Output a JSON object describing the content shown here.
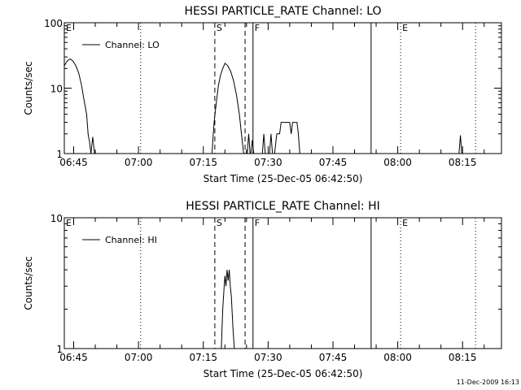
{
  "footer": {
    "timestamp": "11-Dec-2009 16:13"
  },
  "chart_data": [
    {
      "type": "line",
      "title": "HESSI PARTICLE_RATE Channel: LO",
      "xlabel": "Start Time (25-Dec-05 06:42:50)",
      "ylabel": "Counts/sec",
      "yscale": "log",
      "ylim": [
        1,
        100
      ],
      "yticks": [
        {
          "v": 1,
          "label": "1"
        },
        {
          "v": 10,
          "label": "10"
        },
        {
          "v": 100,
          "label": "100"
        }
      ],
      "xlim": [
        "06:42:50",
        "08:24:00"
      ],
      "xticks": [
        "06:45",
        "07:00",
        "07:15",
        "07:30",
        "07:45",
        "08:00",
        "08:15"
      ],
      "legend": {
        "position": "top-left",
        "entries": [
          "Channel: LO"
        ]
      },
      "grid": false,
      "series": [
        {
          "name": "Channel: LO",
          "segments": [
            [
              [
                "06:42:50",
                22
              ],
              [
                "06:43:30",
                26
              ],
              [
                "06:44:10",
                28
              ],
              [
                "06:44:50",
                26
              ],
              [
                "06:45:30",
                22
              ],
              [
                "06:46:10",
                17
              ],
              [
                "06:46:50",
                11
              ],
              [
                "06:47:30",
                6
              ],
              [
                "06:48:00",
                4
              ],
              [
                "06:48:20",
                2
              ],
              [
                "06:48:40",
                1.5
              ],
              [
                "06:49:00",
                1
              ]
            ],
            [
              [
                "06:49:00",
                1
              ],
              [
                "06:49:25",
                1.8
              ],
              [
                "06:49:50",
                1
              ]
            ],
            [
              [
                "07:17:00",
                1
              ],
              [
                "07:17:30",
                3
              ],
              [
                "07:18:00",
                6
              ],
              [
                "07:18:30",
                11
              ],
              [
                "07:19:00",
                16
              ],
              [
                "07:19:30",
                20
              ],
              [
                "07:20:00",
                24
              ],
              [
                "07:20:40",
                22
              ],
              [
                "07:21:20",
                18
              ],
              [
                "07:22:00",
                13
              ],
              [
                "07:22:40",
                8
              ],
              [
                "07:23:20",
                4
              ],
              [
                "07:23:50",
                2
              ],
              [
                "07:24:20",
                1
              ]
            ],
            [
              [
                "07:25:10",
                1
              ],
              [
                "07:25:30",
                2
              ],
              [
                "07:25:50",
                1
              ]
            ],
            [
              [
                "07:26:00",
                1
              ],
              [
                "07:26:20",
                1.6
              ],
              [
                "07:26:40",
                1
              ]
            ],
            [
              [
                "07:28:40",
                1
              ],
              [
                "07:29:00",
                2
              ],
              [
                "07:29:20",
                1
              ]
            ],
            [
              [
                "07:30:20",
                1
              ],
              [
                "07:30:40",
                2
              ],
              [
                "07:31:00",
                1
              ]
            ],
            [
              [
                "07:31:30",
                1
              ],
              [
                "07:32:00",
                2
              ],
              [
                "07:32:40",
                2
              ],
              [
                "07:33:00",
                3
              ],
              [
                "07:35:00",
                3
              ],
              [
                "07:35:20",
                2
              ],
              [
                "07:35:40",
                3
              ],
              [
                "07:36:40",
                3
              ],
              [
                "07:37:00",
                2
              ],
              [
                "07:37:20",
                1
              ]
            ],
            [
              [
                "08:14:10",
                1
              ],
              [
                "08:14:30",
                1.9
              ],
              [
                "08:14:50",
                1
              ]
            ]
          ]
        }
      ],
      "annotations": [
        {
          "label": "E",
          "time": "06:42:50",
          "line": "none"
        },
        {
          "label": "",
          "time": "07:00:30",
          "line": "dotted"
        },
        {
          "label": "S",
          "time": "07:17:40",
          "line": "dashed"
        },
        {
          "label": "",
          "time": "07:24:40",
          "line": "dashed"
        },
        {
          "label": "F",
          "time": "07:26:30",
          "line": "solid"
        },
        {
          "label": "",
          "time": "07:53:50",
          "line": "solid"
        },
        {
          "label": "E",
          "time": "08:00:40",
          "line": "dotted"
        },
        {
          "label": "",
          "time": "08:18:00",
          "line": "dotted"
        }
      ]
    },
    {
      "type": "line",
      "title": "HESSI PARTICLE_RATE Channel: HI",
      "xlabel": "Start Time (25-Dec-05 06:42:50)",
      "ylabel": "Counts/sec",
      "yscale": "log",
      "ylim": [
        1,
        10
      ],
      "yticks": [
        {
          "v": 1,
          "label": "1"
        },
        {
          "v": 10,
          "label": "10"
        }
      ],
      "xlim": [
        "06:42:50",
        "08:24:00"
      ],
      "xticks": [
        "06:45",
        "07:00",
        "07:15",
        "07:30",
        "07:45",
        "08:00",
        "08:15"
      ],
      "legend": {
        "position": "top-left",
        "entries": [
          "Channel: HI"
        ]
      },
      "grid": false,
      "series": [
        {
          "name": "Channel: HI",
          "segments": [
            [
              [
                "07:19:10",
                1
              ],
              [
                "07:19:30",
                2
              ],
              [
                "07:19:50",
                3
              ],
              [
                "07:20:00",
                3.6
              ],
              [
                "07:20:15",
                3
              ],
              [
                "07:20:30",
                4
              ],
              [
                "07:20:45",
                3.3
              ],
              [
                "07:21:00",
                4
              ],
              [
                "07:21:15",
                3
              ],
              [
                "07:21:30",
                2.5
              ],
              [
                "07:21:50",
                1.5
              ],
              [
                "07:22:10",
                1
              ]
            ]
          ]
        }
      ],
      "annotations": [
        {
          "label": "E",
          "time": "06:42:50",
          "line": "none"
        },
        {
          "label": "",
          "time": "07:00:30",
          "line": "dotted"
        },
        {
          "label": "S",
          "time": "07:17:40",
          "line": "dashed"
        },
        {
          "label": "",
          "time": "07:24:40",
          "line": "dashed"
        },
        {
          "label": "F",
          "time": "07:26:30",
          "line": "solid"
        },
        {
          "label": "",
          "time": "07:53:50",
          "line": "solid"
        },
        {
          "label": "E",
          "time": "08:00:40",
          "line": "dotted"
        },
        {
          "label": "",
          "time": "08:18:00",
          "line": "dotted"
        }
      ]
    }
  ]
}
